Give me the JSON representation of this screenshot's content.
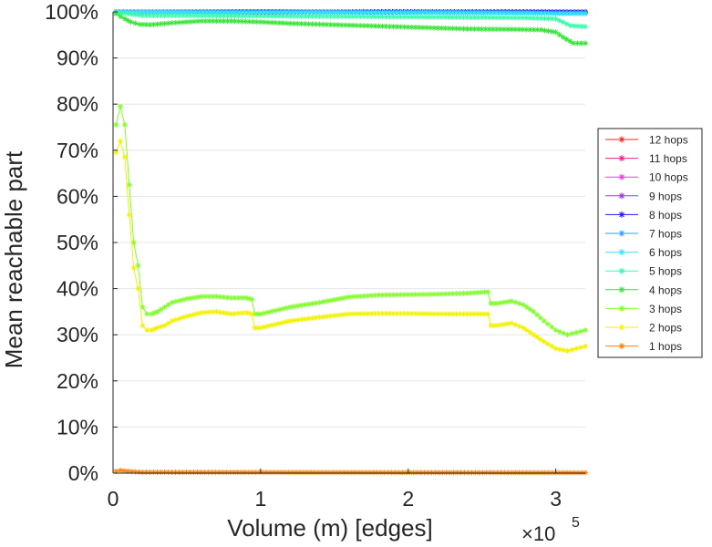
{
  "chart_data": {
    "type": "line",
    "xlabel": "Volume (m) [edges]",
    "ylabel": "Mean reachable part",
    "x_multiplier": {
      "base": "×10",
      "exponent": "5"
    },
    "xlim": [
      0,
      320000
    ],
    "ylim": [
      0,
      100
    ],
    "x_ticks": [
      {
        "value": 0,
        "label": "0"
      },
      {
        "value": 100000,
        "label": "1"
      },
      {
        "value": 200000,
        "label": "2"
      },
      {
        "value": 300000,
        "label": "3"
      }
    ],
    "y_ticks": [
      {
        "value": 0,
        "label": "0%"
      },
      {
        "value": 10,
        "label": "10%"
      },
      {
        "value": 20,
        "label": "20%"
      },
      {
        "value": 30,
        "label": "30%"
      },
      {
        "value": 40,
        "label": "40%"
      },
      {
        "value": 50,
        "label": "50%"
      },
      {
        "value": 60,
        "label": "60%"
      },
      {
        "value": 70,
        "label": "70%"
      },
      {
        "value": 80,
        "label": "80%"
      },
      {
        "value": 90,
        "label": "90%"
      },
      {
        "value": 100,
        "label": "100%"
      }
    ],
    "grid": "horizontal",
    "legend_position": "right",
    "series": [
      {
        "name": "12 hops",
        "color": "#ff2020",
        "x": [
          2000,
          320000
        ],
        "y": [
          100,
          100
        ]
      },
      {
        "name": "11 hops",
        "color": "#ff1a8c",
        "x": [
          2000,
          320000
        ],
        "y": [
          100,
          100
        ]
      },
      {
        "name": "10 hops",
        "color": "#ff33ff",
        "x": [
          2000,
          320000
        ],
        "y": [
          100,
          100
        ]
      },
      {
        "name": "9 hops",
        "color": "#9933ff",
        "x": [
          2000,
          320000
        ],
        "y": [
          100,
          100
        ]
      },
      {
        "name": "8 hops",
        "color": "#1a1aff",
        "x": [
          2000,
          320000
        ],
        "y": [
          100,
          100
        ]
      },
      {
        "name": "7 hops",
        "color": "#3399ff",
        "x": [
          2000,
          100000,
          200000,
          280000,
          300000,
          320000
        ],
        "y": [
          100,
          100,
          100,
          99.9,
          99.8,
          99.8
        ]
      },
      {
        "name": "6 hops",
        "color": "#33e6ff",
        "x": [
          2000,
          100000,
          200000,
          280000,
          300000,
          320000
        ],
        "y": [
          100,
          99.9,
          99.8,
          99.7,
          99.6,
          99.6
        ]
      },
      {
        "name": "5 hops",
        "color": "#33ffaa",
        "x": [
          2000,
          10000,
          20000,
          50000,
          100000,
          150000,
          200000,
          250000,
          280000,
          300000,
          310000,
          320000
        ],
        "y": [
          99.9,
          99.6,
          99.2,
          99.2,
          99.1,
          99.0,
          98.9,
          98.8,
          98.7,
          98.5,
          97.0,
          96.8
        ]
      },
      {
        "name": "4 hops",
        "color": "#33e633",
        "x": [
          2000,
          5000,
          8000,
          12000,
          18000,
          25000,
          40000,
          60000,
          80000,
          100000,
          120000,
          150000,
          180000,
          210000,
          240000,
          270000,
          290000,
          300000,
          305000,
          312000,
          320000
        ],
        "y": [
          99.6,
          99.0,
          98.5,
          97.8,
          97.3,
          97.2,
          97.6,
          98.0,
          98.0,
          97.8,
          97.5,
          97.2,
          96.9,
          96.6,
          96.3,
          96.2,
          96.1,
          95.6,
          94.5,
          93.2,
          93.2
        ]
      },
      {
        "name": "3 hops",
        "color": "#7fff2a",
        "x": [
          2000,
          5000,
          8000,
          11000,
          14000,
          17000,
          20000,
          23000,
          26000,
          30000,
          35000,
          40000,
          50000,
          60000,
          70000,
          80000,
          90000,
          94000,
          96000,
          100000,
          120000,
          140000,
          160000,
          180000,
          200000,
          220000,
          240000,
          254000,
          256000,
          260000,
          270000,
          278000,
          285000,
          292000,
          300000,
          308000,
          314000,
          320000
        ],
        "y": [
          75.5,
          79.5,
          75.5,
          62.5,
          50.0,
          45.0,
          36.0,
          34.5,
          34.5,
          35.0,
          36.0,
          37.0,
          37.8,
          38.3,
          38.3,
          38.0,
          38.0,
          37.7,
          34.5,
          34.5,
          36.0,
          37.0,
          38.2,
          38.6,
          38.7,
          38.8,
          39.0,
          39.3,
          36.8,
          36.8,
          37.3,
          36.5,
          35.0,
          33.0,
          31.0,
          30.0,
          30.5,
          31.0
        ]
      },
      {
        "name": "2 hops",
        "color": "#f2f200",
        "x": [
          2000,
          5000,
          8000,
          11000,
          14000,
          17000,
          20000,
          23000,
          26000,
          30000,
          35000,
          40000,
          50000,
          60000,
          70000,
          80000,
          90000,
          94000,
          96000,
          100000,
          120000,
          140000,
          160000,
          180000,
          200000,
          220000,
          240000,
          254000,
          256000,
          260000,
          270000,
          278000,
          285000,
          292000,
          300000,
          308000,
          314000,
          320000
        ],
        "y": [
          69.5,
          72.0,
          68.5,
          56.0,
          44.5,
          40.0,
          32.0,
          31.0,
          31.0,
          31.5,
          32.0,
          33.0,
          34.0,
          34.8,
          35.0,
          34.5,
          34.8,
          34.5,
          31.5,
          31.5,
          33.0,
          33.8,
          34.5,
          34.6,
          34.6,
          34.5,
          34.5,
          34.5,
          32.0,
          32.0,
          32.5,
          31.5,
          30.0,
          28.5,
          27.0,
          26.5,
          27.0,
          27.5
        ]
      },
      {
        "name": "1 hops",
        "color": "#ff8000",
        "x": [
          2000,
          5000,
          10000,
          20000,
          320000
        ],
        "y": [
          0.4,
          0.6,
          0.4,
          0.2,
          0.1
        ]
      }
    ]
  }
}
